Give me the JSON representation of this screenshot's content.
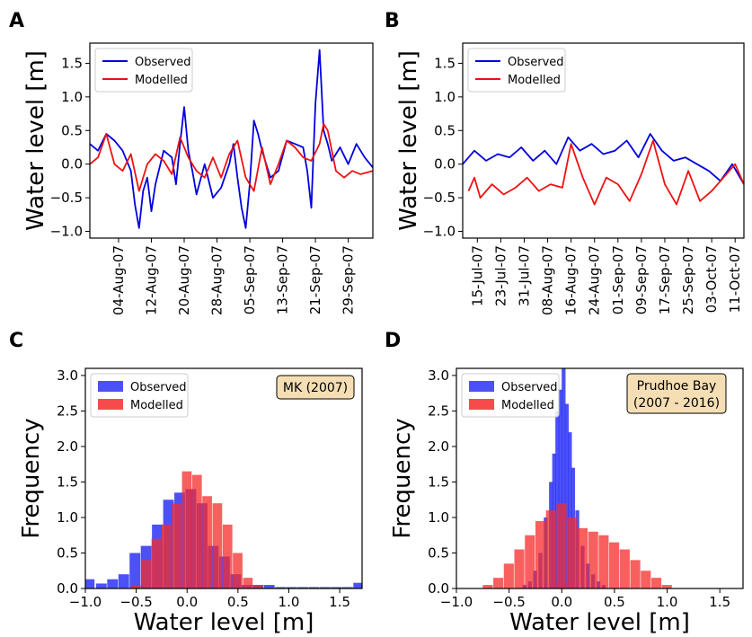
{
  "panels": {
    "A": {
      "label": "A"
    },
    "B": {
      "label": "B"
    },
    "C": {
      "label": "C",
      "annotation": [
        "MK (2007)"
      ]
    },
    "D": {
      "label": "D",
      "annotation": [
        "Prudhoe Bay",
        "(2007 - 2016)"
      ]
    }
  },
  "colors": {
    "observed": "#0000dd",
    "modelled": "#ee1111",
    "observed_bar": "#2b33f5",
    "modelled_bar": "#f52b2b",
    "annotation_bg": "#f5deb3"
  },
  "chart_data": [
    {
      "id": "A",
      "type": "line",
      "ylabel": "Water level [m]",
      "ylim": [
        -1.1,
        1.8
      ],
      "yticks": [
        -1.0,
        -0.5,
        0.0,
        0.5,
        1.0,
        1.5
      ],
      "xlim": [
        "2007-07-28",
        "2007-10-05"
      ],
      "xticks": [
        "04-Aug-07",
        "12-Aug-07",
        "20-Aug-07",
        "28-Aug-07",
        "05-Sep-07",
        "13-Sep-07",
        "21-Sep-07",
        "29-Sep-07"
      ],
      "legend": "upper-left",
      "series": [
        {
          "name": "Observed",
          "color": "#0000dd",
          "x": [
            "2007-07-28",
            "2007-07-30",
            "2007-08-01",
            "2007-08-03",
            "2007-08-05",
            "2007-08-07",
            "2007-08-08",
            "2007-08-09",
            "2007-08-10",
            "2007-08-11",
            "2007-08-12",
            "2007-08-13",
            "2007-08-15",
            "2007-08-17",
            "2007-08-18",
            "2007-08-19",
            "2007-08-20",
            "2007-08-21",
            "2007-08-22",
            "2007-08-23",
            "2007-08-25",
            "2007-08-27",
            "2007-08-29",
            "2007-08-31",
            "2007-09-01",
            "2007-09-02",
            "2007-09-03",
            "2007-09-04",
            "2007-09-05",
            "2007-09-06",
            "2007-09-07",
            "2007-09-08",
            "2007-09-10",
            "2007-09-12",
            "2007-09-14",
            "2007-09-16",
            "2007-09-18",
            "2007-09-19",
            "2007-09-20",
            "2007-09-21",
            "2007-09-22",
            "2007-09-23",
            "2007-09-24",
            "2007-09-25",
            "2007-09-27",
            "2007-09-29",
            "2007-10-01",
            "2007-10-03",
            "2007-10-05"
          ],
          "y": [
            0.3,
            0.2,
            0.45,
            0.35,
            0.2,
            -0.1,
            -0.6,
            -0.95,
            -0.4,
            -0.2,
            -0.7,
            -0.3,
            0.2,
            0.1,
            -0.3,
            0.3,
            0.85,
            0.2,
            -0.1,
            -0.45,
            0.0,
            -0.5,
            -0.35,
            0.0,
            0.3,
            -0.2,
            -0.65,
            -0.95,
            -0.3,
            0.65,
            0.45,
            0.2,
            -0.2,
            -0.1,
            0.35,
            0.3,
            0.25,
            -0.1,
            -0.65,
            0.9,
            1.7,
            0.5,
            0.3,
            0.05,
            0.25,
            0.0,
            0.3,
            0.1,
            -0.05
          ]
        },
        {
          "name": "Modelled",
          "color": "#ee1111",
          "x": [
            "2007-07-28",
            "2007-07-30",
            "2007-08-01",
            "2007-08-03",
            "2007-08-05",
            "2007-08-07",
            "2007-08-09",
            "2007-08-11",
            "2007-08-13",
            "2007-08-15",
            "2007-08-17",
            "2007-08-19",
            "2007-08-21",
            "2007-08-23",
            "2007-08-25",
            "2007-08-27",
            "2007-08-29",
            "2007-08-31",
            "2007-09-02",
            "2007-09-04",
            "2007-09-06",
            "2007-09-08",
            "2007-09-10",
            "2007-09-12",
            "2007-09-14",
            "2007-09-16",
            "2007-09-18",
            "2007-09-20",
            "2007-09-22",
            "2007-09-23",
            "2007-09-24",
            "2007-09-26",
            "2007-09-28",
            "2007-09-30",
            "2007-10-02",
            "2007-10-05"
          ],
          "y": [
            0.0,
            0.1,
            0.45,
            0.0,
            -0.1,
            0.15,
            -0.4,
            0.0,
            0.15,
            0.05,
            -0.15,
            0.4,
            0.1,
            -0.1,
            -0.2,
            0.1,
            -0.2,
            0.15,
            0.35,
            -0.2,
            -0.4,
            0.25,
            -0.3,
            0.0,
            0.35,
            0.25,
            0.1,
            0.05,
            0.3,
            0.6,
            0.5,
            -0.1,
            -0.2,
            -0.1,
            -0.15,
            -0.1
          ]
        }
      ]
    },
    {
      "id": "B",
      "type": "line",
      "ylabel": "Water level [m]",
      "ylim": [
        -1.1,
        1.8
      ],
      "yticks": [
        -1.0,
        -0.5,
        0.0,
        0.5,
        1.0,
        1.5
      ],
      "xlim": [
        "2007-07-10",
        "2007-10-14"
      ],
      "xticks": [
        "15-Jul-07",
        "23-Jul-07",
        "31-Jul-07",
        "08-Aug-07",
        "16-Aug-07",
        "24-Aug-07",
        "01-Sep-07",
        "09-Sep-07",
        "17-Sep-07",
        "25-Sep-07",
        "03-Oct-07",
        "11-Oct-07"
      ],
      "legend": "upper-left",
      "series": [
        {
          "name": "Observed",
          "color": "#0000dd",
          "x": [
            "2007-07-10",
            "2007-07-14",
            "2007-07-18",
            "2007-07-22",
            "2007-07-26",
            "2007-07-30",
            "2007-08-03",
            "2007-08-07",
            "2007-08-11",
            "2007-08-15",
            "2007-08-19",
            "2007-08-23",
            "2007-08-27",
            "2007-08-31",
            "2007-09-04",
            "2007-09-08",
            "2007-09-12",
            "2007-09-16",
            "2007-09-20",
            "2007-09-24",
            "2007-09-28",
            "2007-10-02",
            "2007-10-06",
            "2007-10-10",
            "2007-10-14"
          ],
          "y": [
            0.0,
            0.2,
            0.05,
            0.15,
            0.1,
            0.25,
            0.05,
            0.2,
            0.0,
            0.4,
            0.2,
            0.3,
            0.15,
            0.2,
            0.35,
            0.1,
            0.45,
            0.2,
            0.05,
            0.1,
            0.0,
            -0.1,
            -0.25,
            0.0,
            -0.3
          ]
        },
        {
          "name": "Modelled",
          "color": "#ee1111",
          "x": [
            "2007-07-12",
            "2007-07-14",
            "2007-07-16",
            "2007-07-20",
            "2007-07-24",
            "2007-07-28",
            "2007-08-01",
            "2007-08-05",
            "2007-08-09",
            "2007-08-13",
            "2007-08-16",
            "2007-08-20",
            "2007-08-24",
            "2007-08-28",
            "2007-09-01",
            "2007-09-05",
            "2007-09-09",
            "2007-09-13",
            "2007-09-17",
            "2007-09-21",
            "2007-09-25",
            "2007-09-29",
            "2007-10-03",
            "2007-10-07",
            "2007-10-11",
            "2007-10-14"
          ],
          "y": [
            -0.4,
            -0.2,
            -0.5,
            -0.3,
            -0.45,
            -0.35,
            -0.2,
            -0.4,
            -0.3,
            -0.35,
            0.3,
            -0.2,
            -0.6,
            -0.2,
            -0.3,
            -0.55,
            -0.15,
            0.35,
            -0.3,
            -0.6,
            -0.1,
            -0.55,
            -0.4,
            -0.2,
            0.0,
            -0.3
          ]
        }
      ]
    },
    {
      "id": "C",
      "type": "bar",
      "xlabel": "Water level [m]",
      "ylabel": "Frequency",
      "xlim": [
        -1.0,
        1.72
      ],
      "ylim": [
        0,
        3.1
      ],
      "xticks": [
        -1.0,
        -0.5,
        0.0,
        0.5,
        1.0,
        1.5
      ],
      "yticks": [
        0.0,
        0.5,
        1.0,
        1.5,
        2.0,
        2.5,
        3.0
      ],
      "legend": "upper-left",
      "series": [
        {
          "name": "Observed",
          "color": "#2b33f5",
          "x": [
            -0.96,
            -0.84,
            -0.73,
            -0.62,
            -0.51,
            -0.4,
            -0.29,
            -0.18,
            -0.07,
            0.04,
            0.15,
            0.26,
            0.37,
            0.48,
            0.59,
            0.7,
            0.81,
            0.92,
            1.03,
            1.14,
            1.25,
            1.36,
            1.47,
            1.58,
            1.69
          ],
          "y": [
            0.13,
            0.07,
            0.13,
            0.2,
            0.5,
            0.6,
            0.9,
            1.25,
            1.35,
            1.4,
            1.2,
            0.6,
            0.45,
            0.2,
            0.05,
            0.05,
            0.05,
            0.02,
            0.02,
            0.02,
            0.02,
            0.02,
            0.02,
            0.02,
            0.08
          ]
        },
        {
          "name": "Modelled",
          "color": "#f52b2b",
          "x": [
            -0.5,
            -0.4,
            -0.3,
            -0.2,
            -0.1,
            0.0,
            0.1,
            0.2,
            0.3,
            0.4,
            0.5,
            0.6,
            0.7
          ],
          "y": [
            0.05,
            0.4,
            0.7,
            0.9,
            1.2,
            1.65,
            1.6,
            1.3,
            1.2,
            0.9,
            0.5,
            0.15,
            0.05
          ]
        }
      ]
    },
    {
      "id": "D",
      "type": "bar",
      "xlabel": "Water level [m]",
      "ylabel": "Frequency",
      "xlim": [
        -1.0,
        1.72
      ],
      "ylim": [
        0,
        3.1
      ],
      "xticks": [
        -1.0,
        -0.5,
        0.0,
        0.5,
        1.0,
        1.5
      ],
      "yticks": [
        0.0,
        0.5,
        1.0,
        1.5,
        2.0,
        2.5,
        3.0
      ],
      "legend": "upper-left",
      "series": [
        {
          "name": "Observed",
          "color": "#2b33f5",
          "x": [
            -0.35,
            -0.3,
            -0.25,
            -0.2,
            -0.15,
            -0.1,
            -0.07,
            -0.04,
            -0.01,
            0.02,
            0.05,
            0.08,
            0.11,
            0.15,
            0.2,
            0.25,
            0.3,
            0.35,
            0.4
          ],
          "y": [
            0.05,
            0.1,
            0.25,
            0.5,
            1.0,
            1.5,
            1.9,
            2.5,
            2.8,
            3.2,
            2.6,
            2.2,
            1.7,
            1.1,
            0.6,
            0.35,
            0.2,
            0.1,
            0.05
          ]
        },
        {
          "name": "Modelled",
          "color": "#f52b2b",
          "x": [
            -0.7,
            -0.6,
            -0.5,
            -0.4,
            -0.3,
            -0.2,
            -0.1,
            0.0,
            0.1,
            0.2,
            0.3,
            0.4,
            0.5,
            0.6,
            0.7,
            0.8,
            0.9,
            1.0
          ],
          "y": [
            0.05,
            0.15,
            0.35,
            0.55,
            0.75,
            0.95,
            1.1,
            1.2,
            1.0,
            0.85,
            0.8,
            0.75,
            0.65,
            0.55,
            0.4,
            0.25,
            0.15,
            0.05
          ]
        }
      ]
    }
  ]
}
